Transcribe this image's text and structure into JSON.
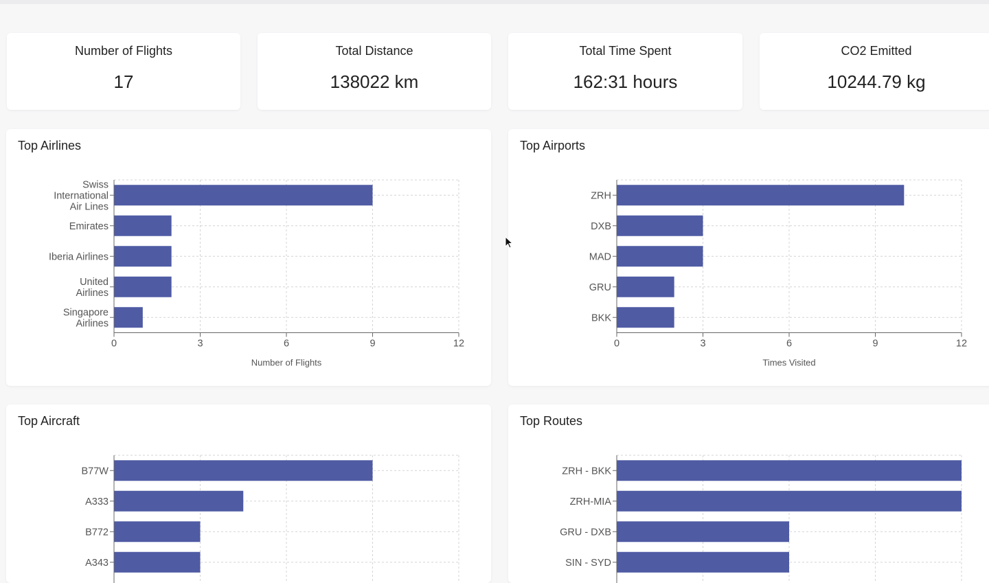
{
  "stats": [
    {
      "label": "Number of Flights",
      "value": "17"
    },
    {
      "label": "Total Distance",
      "value": "138022 km"
    },
    {
      "label": "Total Time Spent",
      "value": "162:31 hours"
    },
    {
      "label": "CO2 Emitted",
      "value": "10244.79 kg"
    }
  ],
  "colors": {
    "bar": "#4f5ba3",
    "grid": "#d4d4d8",
    "axis": "#666666"
  },
  "chart_data": [
    {
      "type": "bar",
      "orientation": "horizontal",
      "title": "Top Airlines",
      "xlabel": "Number of Flights",
      "ylabel": "",
      "categories": [
        [
          "Swiss",
          "International",
          "Air Lines"
        ],
        [
          "Emirates"
        ],
        [
          "Iberia Airlines"
        ],
        [
          "United",
          "Airlines"
        ],
        [
          "Singapore",
          "Airlines"
        ]
      ],
      "values": [
        9,
        2,
        2,
        2,
        1
      ],
      "xlim": [
        0,
        12
      ],
      "xticks": [
        0,
        3,
        6,
        9,
        12
      ],
      "grid": true
    },
    {
      "type": "bar",
      "orientation": "horizontal",
      "title": "Top Airports",
      "xlabel": "Times Visited",
      "ylabel": "",
      "categories": [
        [
          "ZRH"
        ],
        [
          "DXB"
        ],
        [
          "MAD"
        ],
        [
          "GRU"
        ],
        [
          "BKK"
        ]
      ],
      "values": [
        10,
        3,
        3,
        2,
        2
      ],
      "xlim": [
        0,
        12
      ],
      "xticks": [
        0,
        3,
        6,
        9,
        12
      ],
      "grid": true
    },
    {
      "type": "bar",
      "orientation": "horizontal",
      "title": "Top Aircraft",
      "xlabel": "",
      "ylabel": "",
      "categories": [
        [
          "B77W"
        ],
        [
          "A333"
        ],
        [
          "B772"
        ],
        [
          "A343"
        ]
      ],
      "values": [
        9,
        4.5,
        3,
        3
      ],
      "xlim": [
        0,
        12
      ],
      "xticks": [],
      "grid": true
    },
    {
      "type": "bar",
      "orientation": "horizontal",
      "title": "Top Routes",
      "xlabel": "",
      "ylabel": "",
      "categories": [
        [
          "ZRH - BKK"
        ],
        [
          "ZRH-MIA"
        ],
        [
          "GRU - DXB"
        ],
        [
          "SIN - SYD"
        ]
      ],
      "values": [
        2,
        2,
        1,
        1
      ],
      "xlim": [
        0,
        2
      ],
      "xticks": [],
      "grid": true
    }
  ]
}
